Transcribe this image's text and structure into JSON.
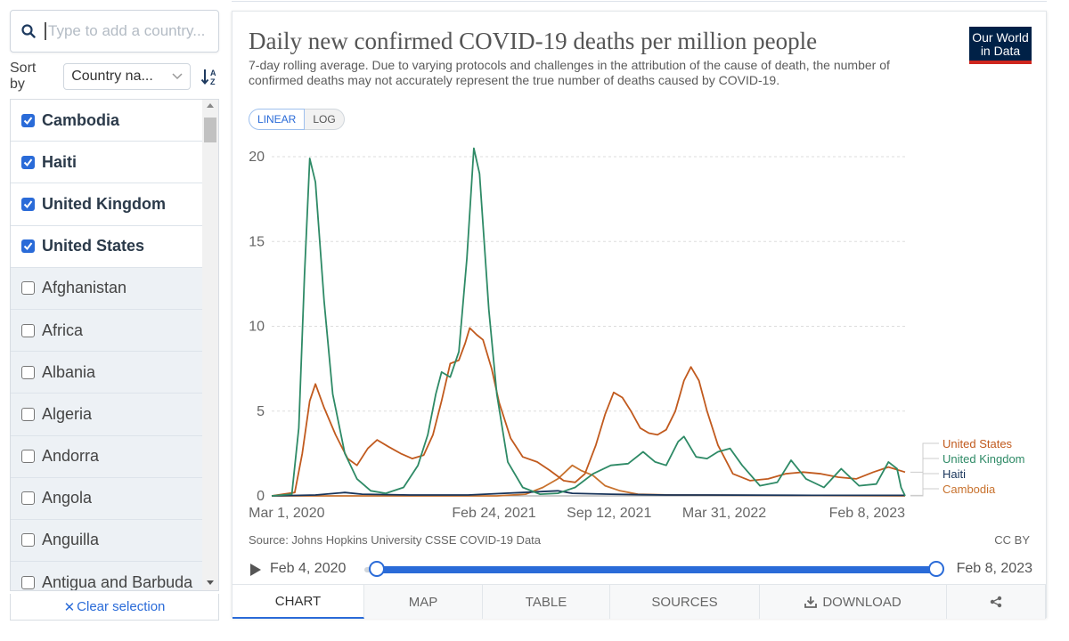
{
  "search": {
    "placeholder": "Type to add a country..."
  },
  "sort": {
    "label": "Sort by",
    "value": "Country na..."
  },
  "entities": [
    {
      "name": "Cambodia",
      "checked": true
    },
    {
      "name": "Haiti",
      "checked": true
    },
    {
      "name": "United Kingdom",
      "checked": true
    },
    {
      "name": "United States",
      "checked": true
    },
    {
      "name": "Afghanistan",
      "checked": false
    },
    {
      "name": "Africa",
      "checked": false
    },
    {
      "name": "Albania",
      "checked": false
    },
    {
      "name": "Algeria",
      "checked": false
    },
    {
      "name": "Andorra",
      "checked": false
    },
    {
      "name": "Angola",
      "checked": false
    },
    {
      "name": "Anguilla",
      "checked": false
    },
    {
      "name": "Antigua and Barbuda",
      "checked": false
    }
  ],
  "clear_label": "Clear selection",
  "chart": {
    "title": "Daily new confirmed COVID-19 deaths per million people",
    "subtitle": "7-day rolling average. Due to varying protocols and challenges in the attribution of the cause of death, the number of confirmed deaths may not accurately represent the true number of deaths caused by COVID-19.",
    "logo_line1": "Our World",
    "logo_line2": "in Data",
    "scale_linear": "LINEAR",
    "scale_log": "LOG",
    "source": "Source: Johns Hopkins University CSSE COVID-19 Data",
    "license": "CC BY"
  },
  "timeline": {
    "start": "Feb 4, 2020",
    "end": "Feb 8, 2023",
    "start_fraction": 0.0,
    "end_fraction": 1.0
  },
  "tabs": [
    {
      "label": "CHART",
      "active": true
    },
    {
      "label": "MAP",
      "active": false
    },
    {
      "label": "TABLE",
      "active": false
    },
    {
      "label": "SOURCES",
      "active": false
    },
    {
      "label": "DOWNLOAD",
      "active": false
    },
    {
      "label": "",
      "active": false
    }
  ],
  "colors": {
    "united_states": "#c15a1e",
    "united_kingdom": "#2e8a66",
    "haiti": "#18345a",
    "cambodia": "#c8722e",
    "accent": "#2a6bd8"
  },
  "chart_data": {
    "type": "line",
    "xlabel": "",
    "ylabel": "",
    "ylim": [
      0,
      20
    ],
    "yticks": [
      0,
      5,
      10,
      15,
      20
    ],
    "xticks": [
      "Mar 1, 2020",
      "Feb 24, 2021",
      "Sep 12, 2021",
      "Mar 31, 2022",
      "Feb 8, 2023"
    ],
    "xrange": [
      "2020-02-04",
      "2023-02-08"
    ],
    "grid": "horizontal-dashed",
    "legend": "right-end-labels",
    "series": [
      {
        "name": "United States",
        "color_key": "united_states",
        "points": [
          [
            "2020-02-04",
            0
          ],
          [
            "2020-03-15",
            0.2
          ],
          [
            "2020-03-28",
            2.5
          ],
          [
            "2020-04-10",
            5.6
          ],
          [
            "2020-04-20",
            6.6
          ],
          [
            "2020-05-05",
            5.2
          ],
          [
            "2020-05-25",
            3.6
          ],
          [
            "2020-06-15",
            2.2
          ],
          [
            "2020-07-01",
            1.8
          ],
          [
            "2020-07-20",
            2.8
          ],
          [
            "2020-08-05",
            3.3
          ],
          [
            "2020-08-25",
            2.9
          ],
          [
            "2020-09-15",
            2.5
          ],
          [
            "2020-10-05",
            2.2
          ],
          [
            "2020-10-25",
            2.4
          ],
          [
            "2020-11-10",
            3.6
          ],
          [
            "2020-11-25",
            5.6
          ],
          [
            "2020-12-10",
            7.8
          ],
          [
            "2020-12-25",
            8.0
          ],
          [
            "2021-01-05",
            9.0
          ],
          [
            "2021-01-13",
            9.9
          ],
          [
            "2021-01-25",
            9.5
          ],
          [
            "2021-02-05",
            9.2
          ],
          [
            "2021-02-20",
            7.5
          ],
          [
            "2021-03-05",
            5.5
          ],
          [
            "2021-03-25",
            3.4
          ],
          [
            "2021-04-15",
            2.3
          ],
          [
            "2021-05-10",
            2.0
          ],
          [
            "2021-06-01",
            1.5
          ],
          [
            "2021-06-25",
            0.9
          ],
          [
            "2021-07-15",
            0.8
          ],
          [
            "2021-08-01",
            1.3
          ],
          [
            "2021-08-20",
            3.0
          ],
          [
            "2021-09-05",
            4.8
          ],
          [
            "2021-09-20",
            6.1
          ],
          [
            "2021-10-05",
            5.8
          ],
          [
            "2021-10-20",
            5.0
          ],
          [
            "2021-11-05",
            4.0
          ],
          [
            "2021-11-20",
            3.7
          ],
          [
            "2021-12-05",
            3.6
          ],
          [
            "2021-12-20",
            3.9
          ],
          [
            "2022-01-05",
            5.0
          ],
          [
            "2022-01-20",
            6.8
          ],
          [
            "2022-02-01",
            7.6
          ],
          [
            "2022-02-15",
            6.8
          ],
          [
            "2022-03-01",
            5.0
          ],
          [
            "2022-03-20",
            3.0
          ],
          [
            "2022-04-15",
            1.3
          ],
          [
            "2022-05-15",
            0.9
          ],
          [
            "2022-06-15",
            1.0
          ],
          [
            "2022-07-15",
            1.3
          ],
          [
            "2022-08-15",
            1.4
          ],
          [
            "2022-09-15",
            1.3
          ],
          [
            "2022-10-15",
            1.1
          ],
          [
            "2022-11-15",
            1.0
          ],
          [
            "2022-12-15",
            1.4
          ],
          [
            "2023-01-10",
            1.7
          ],
          [
            "2023-02-08",
            1.4
          ]
        ]
      },
      {
        "name": "United Kingdom",
        "color_key": "united_kingdom",
        "points": [
          [
            "2020-02-04",
            0
          ],
          [
            "2020-03-10",
            0.1
          ],
          [
            "2020-03-22",
            4.0
          ],
          [
            "2020-04-01",
            13.0
          ],
          [
            "2020-04-10",
            19.9
          ],
          [
            "2020-04-20",
            18.5
          ],
          [
            "2020-05-05",
            11.5
          ],
          [
            "2020-05-20",
            6.0
          ],
          [
            "2020-06-10",
            2.5
          ],
          [
            "2020-07-01",
            1.0
          ],
          [
            "2020-07-25",
            0.3
          ],
          [
            "2020-08-20",
            0.15
          ],
          [
            "2020-09-20",
            0.5
          ],
          [
            "2020-10-15",
            1.8
          ],
          [
            "2020-11-01",
            3.6
          ],
          [
            "2020-11-15",
            6.0
          ],
          [
            "2020-11-25",
            7.3
          ],
          [
            "2020-12-10",
            7.0
          ],
          [
            "2020-12-25",
            8.5
          ],
          [
            "2021-01-08",
            14.0
          ],
          [
            "2021-01-20",
            20.5
          ],
          [
            "2021-01-30",
            19.0
          ],
          [
            "2021-02-15",
            11.0
          ],
          [
            "2021-03-01",
            6.0
          ],
          [
            "2021-03-20",
            2.0
          ],
          [
            "2021-04-15",
            0.5
          ],
          [
            "2021-05-15",
            0.1
          ],
          [
            "2021-06-15",
            0.15
          ],
          [
            "2021-07-15",
            0.5
          ],
          [
            "2021-08-15",
            1.3
          ],
          [
            "2021-09-15",
            1.8
          ],
          [
            "2021-10-15",
            1.9
          ],
          [
            "2021-11-10",
            2.6
          ],
          [
            "2021-12-01",
            2.0
          ],
          [
            "2021-12-20",
            1.8
          ],
          [
            "2022-01-10",
            3.2
          ],
          [
            "2022-01-20",
            3.5
          ],
          [
            "2022-02-10",
            2.3
          ],
          [
            "2022-03-01",
            2.2
          ],
          [
            "2022-03-20",
            2.6
          ],
          [
            "2022-04-10",
            2.8
          ],
          [
            "2022-05-01",
            1.8
          ],
          [
            "2022-06-01",
            0.6
          ],
          [
            "2022-07-01",
            0.8
          ],
          [
            "2022-07-25",
            2.1
          ],
          [
            "2022-08-20",
            1.0
          ],
          [
            "2022-09-20",
            0.5
          ],
          [
            "2022-10-20",
            1.6
          ],
          [
            "2022-11-20",
            0.6
          ],
          [
            "2022-12-20",
            0.7
          ],
          [
            "2023-01-10",
            2.0
          ],
          [
            "2023-01-25",
            1.6
          ],
          [
            "2023-02-01",
            0.5
          ],
          [
            "2023-02-08",
            0.0
          ]
        ]
      },
      {
        "name": "Haiti",
        "color_key": "haiti",
        "points": [
          [
            "2020-02-04",
            0
          ],
          [
            "2020-04-20",
            0.05
          ],
          [
            "2020-06-10",
            0.2
          ],
          [
            "2020-07-10",
            0.1
          ],
          [
            "2020-10-01",
            0.05
          ],
          [
            "2021-01-10",
            0.05
          ],
          [
            "2021-06-15",
            0.3
          ],
          [
            "2021-07-10",
            0.15
          ],
          [
            "2021-09-15",
            0.1
          ],
          [
            "2021-12-20",
            0.05
          ],
          [
            "2022-03-01",
            0.05
          ],
          [
            "2022-09-01",
            0.03
          ],
          [
            "2023-02-08",
            0.03
          ]
        ]
      },
      {
        "name": "Cambodia",
        "color_key": "cambodia",
        "points": [
          [
            "2020-02-04",
            0
          ],
          [
            "2021-03-01",
            0
          ],
          [
            "2021-04-20",
            0.1
          ],
          [
            "2021-05-20",
            0.5
          ],
          [
            "2021-06-15",
            1.0
          ],
          [
            "2021-07-10",
            1.8
          ],
          [
            "2021-07-25",
            1.5
          ],
          [
            "2021-08-15",
            1.2
          ],
          [
            "2021-09-05",
            0.6
          ],
          [
            "2021-10-01",
            0.3
          ],
          [
            "2021-11-01",
            0.1
          ],
          [
            "2022-01-01",
            0.05
          ],
          [
            "2023-02-08",
            0.0
          ]
        ]
      }
    ]
  }
}
